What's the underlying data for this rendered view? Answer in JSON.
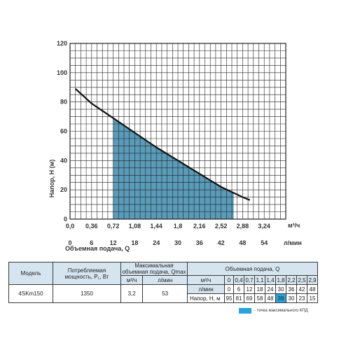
{
  "chart_data": {
    "type": "line",
    "ylabel": "Напор, H (м)",
    "xlabel": "Объемная подача, Q",
    "x_unit_top": "м³/ч",
    "x_unit_bottom": "л/мин",
    "x_ticks_m3h": [
      "0,0",
      "0,36",
      "0,72",
      "1,08",
      "1,44",
      "1,8",
      "2,16",
      "2,52",
      "2,88",
      "3,24"
    ],
    "x_ticks_lmin": [
      "0",
      "6",
      "12",
      "18",
      "24",
      "30",
      "36",
      "42",
      "48",
      "54"
    ],
    "y_ticks": [
      "0",
      "20",
      "40",
      "60",
      "80",
      "100",
      "120"
    ],
    "xlim_m3h": [
      0,
      3.6
    ],
    "ylim": [
      0,
      120
    ],
    "grid": true,
    "series": [
      {
        "x_m3h": [
          0.09,
          0.36,
          0.72,
          1.08,
          1.44,
          1.8,
          2.16,
          2.52,
          2.88,
          3.0
        ],
        "y": [
          89,
          79,
          69,
          59,
          49,
          40,
          31,
          22,
          15,
          13
        ],
        "color": "#111111"
      }
    ],
    "efficiency_zone_m3h": [
      0.72,
      2.73
    ],
    "efficiency_zone_color": "#5a9bb9"
  },
  "table": {
    "head_model": "Модель",
    "head_power": "Потребляемая мощность, P₁, Вт",
    "head_qmax": "Максимальная объемная подача, Qmax",
    "head_q": "Объемная подача, Q",
    "unit_m3h": "м³/ч",
    "unit_lmin": "л/мин",
    "row_q_m3h": [
      "0",
      "0,4",
      "0,7",
      "1,1",
      "1,4",
      "1,8",
      "2,2",
      "2,5",
      "2,9"
    ],
    "row_q_lmin": [
      "0",
      "6",
      "12",
      "18",
      "24",
      "30",
      "36",
      "42",
      "48"
    ],
    "row_head_label": "Напор, Н, м",
    "model": "4SKm150",
    "power": "1350",
    "qmax_m3h": "3,2",
    "qmax_lmin": "53",
    "head_values": [
      "95",
      "81",
      "69",
      "58",
      "48",
      "39",
      "30",
      "23",
      "15"
    ],
    "highlight_index": 5,
    "highlight_color": "#29a3dc"
  },
  "legend": {
    "text": "- точка максимального КПД"
  }
}
